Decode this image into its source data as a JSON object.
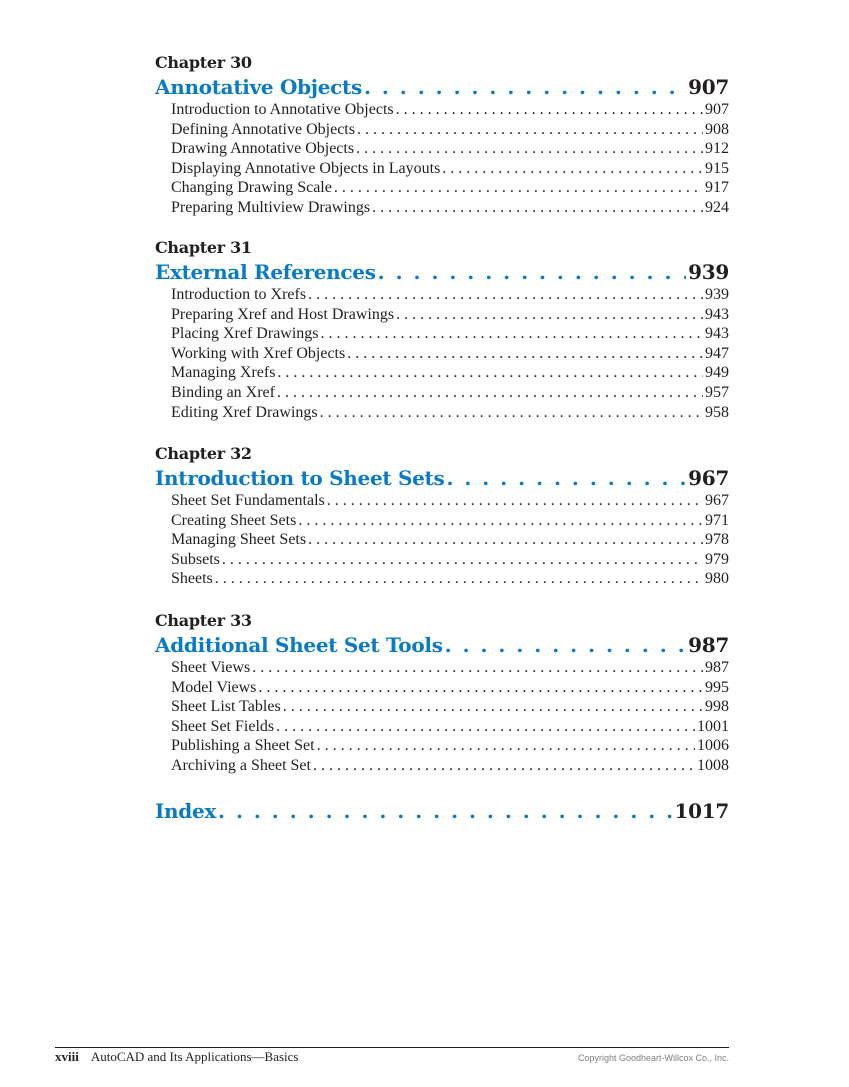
{
  "accent_color": "#0a7ac4",
  "chapters": [
    {
      "label": "Chapter 30",
      "title": "Annotative Objects",
      "page": "907",
      "entries": [
        {
          "title": "Introduction to Annotative Objects",
          "page": "907"
        },
        {
          "title": "Defining Annotative Objects",
          "page": "908"
        },
        {
          "title": "Drawing Annotative Objects",
          "page": "912"
        },
        {
          "title": "Displaying Annotative Objects in Layouts",
          "page": "915"
        },
        {
          "title": "Changing Drawing Scale",
          "page": "917"
        },
        {
          "title": "Preparing Multiview Drawings",
          "page": "924"
        }
      ]
    },
    {
      "label": "Chapter 31",
      "title": "External References",
      "page": "939",
      "entries": [
        {
          "title": "Introduction to Xrefs",
          "page": "939"
        },
        {
          "title": "Preparing Xref and Host Drawings",
          "page": "943"
        },
        {
          "title": "Placing Xref Drawings",
          "page": "943"
        },
        {
          "title": "Working with Xref Objects",
          "page": "947"
        },
        {
          "title": "Managing Xrefs",
          "page": "949"
        },
        {
          "title": "Binding an Xref",
          "page": "957"
        },
        {
          "title": "Editing Xref Drawings",
          "page": "958"
        }
      ]
    },
    {
      "label": "Chapter 32",
      "title": "Introduction to Sheet Sets",
      "page": "967",
      "entries": [
        {
          "title": "Sheet Set Fundamentals",
          "page": "967"
        },
        {
          "title": "Creating Sheet Sets",
          "page": "971"
        },
        {
          "title": "Managing Sheet Sets",
          "page": "978"
        },
        {
          "title": "Subsets",
          "page": "979"
        },
        {
          "title": "Sheets",
          "page": "980"
        }
      ]
    },
    {
      "label": "Chapter 33",
      "title": "Additional Sheet Set Tools",
      "page": "987",
      "entries": [
        {
          "title": "Sheet Views",
          "page": "987"
        },
        {
          "title": "Model Views",
          "page": "995"
        },
        {
          "title": "Sheet List Tables",
          "page": "998"
        },
        {
          "title": "Sheet Set Fields",
          "page": "1001"
        },
        {
          "title": "Publishing a Sheet Set",
          "page": "1006"
        },
        {
          "title": "Archiving a Sheet Set",
          "page": "1008"
        }
      ]
    }
  ],
  "index": {
    "title": "Index",
    "page": "1017"
  },
  "footer": {
    "page_number": "xviii",
    "book_title": "AutoCAD and Its Applications—Basics",
    "copyright": "Copyright Goodheart-Willcox Co., Inc."
  }
}
